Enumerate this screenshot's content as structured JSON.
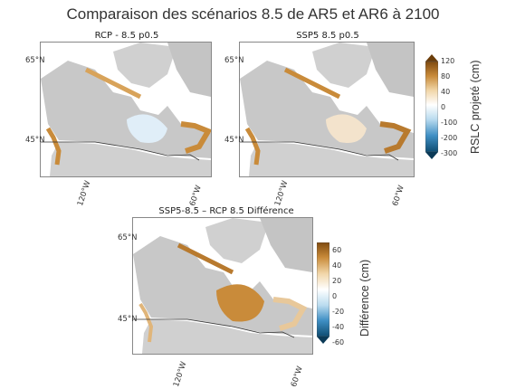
{
  "title": "Comparaison des scénarios 8.5 de AR5 et AR6 à 2100",
  "panels": [
    {
      "title": "RCP - 8.5 p0.5"
    },
    {
      "title": "SSP5 8.5 p0.5"
    },
    {
      "title": "SSP5-8.5 – RCP 8.5 Différence"
    }
  ],
  "axes": {
    "lat_labels": [
      "65°N",
      "45°N"
    ],
    "lon_labels": [
      "120°W",
      "60°W"
    ]
  },
  "colorbar_rslc": {
    "label": "RSLC projeté (cm)",
    "ticks": [
      "120",
      "80",
      "40",
      "0",
      "-100",
      "-200",
      "-300"
    ],
    "colors": [
      "#7f4a0f",
      "#c98b3a",
      "#f1d6a8",
      "#ffffff",
      "#b9dbef",
      "#3f8fc4",
      "#0f4d72"
    ]
  },
  "colorbar_diff": {
    "label": "Différence (cm)",
    "ticks": [
      "60",
      "40",
      "20",
      "0",
      "-20",
      "-40",
      "-60"
    ],
    "colors": [
      "#7f4a0f",
      "#c98b3a",
      "#f1d6a8",
      "#ffffff",
      "#b9dbef",
      "#3f8fc4",
      "#0f4d72"
    ]
  },
  "colors": {
    "land": "#d0d0d0",
    "ocean": "#ffffff",
    "border": "#333333",
    "coast_positive": "#c98b3a",
    "negative": "#d9ecf8"
  }
}
